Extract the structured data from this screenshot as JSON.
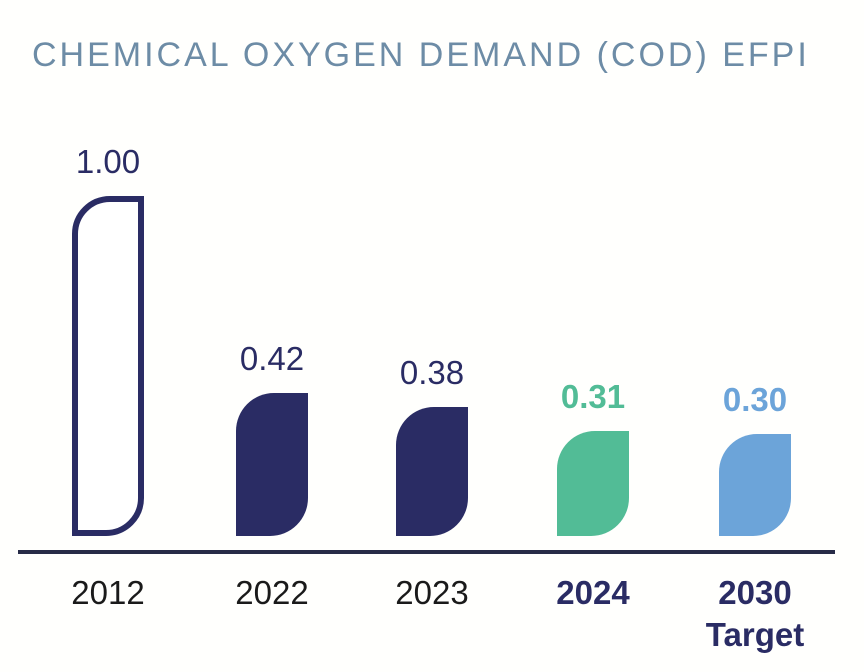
{
  "header": {
    "title": "CHEMICAL OXYGEN DEMAND (COD) EFPI",
    "title_color": "#6d8ca6"
  },
  "chart_data": {
    "type": "bar",
    "title": "CHEMICAL OXYGEN DEMAND (COD) EFPI",
    "categories": [
      "2012",
      "2022",
      "2023",
      "2024",
      "2030 Target"
    ],
    "values": [
      1.0,
      0.42,
      0.38,
      0.31,
      0.3
    ],
    "ylim": [
      0,
      1.0
    ],
    "grid": false,
    "legend": false,
    "baseline_color": "#272b47",
    "bars": [
      {
        "category": "2012",
        "tick": "2012",
        "value": 1.0,
        "label": "1.00",
        "style": "outline",
        "color": "#2a2c64",
        "label_color": "#2a2c64",
        "label_bold": false,
        "tick_color": "#1a1a1a",
        "tick_bold": false
      },
      {
        "category": "2022",
        "tick": "2022",
        "value": 0.42,
        "label": "0.42",
        "style": "filled",
        "color": "#2a2c64",
        "label_color": "#2a2c64",
        "label_bold": false,
        "tick_color": "#1a1a1a",
        "tick_bold": false
      },
      {
        "category": "2023",
        "tick": "2023",
        "value": 0.38,
        "label": "0.38",
        "style": "filled",
        "color": "#2a2c64",
        "label_color": "#2a2c64",
        "label_bold": false,
        "tick_color": "#1a1a1a",
        "tick_bold": false
      },
      {
        "category": "2024",
        "tick": "2024",
        "value": 0.31,
        "label": "0.31",
        "style": "filled",
        "color": "#52bc96",
        "label_color": "#52bc96",
        "label_bold": true,
        "tick_color": "#2a2c64",
        "tick_bold": true
      },
      {
        "category": "2030 Target",
        "tick": "2030\nTarget",
        "value": 0.3,
        "label": "0.30",
        "style": "filled",
        "color": "#6ca4d9",
        "label_color": "#6ca4d9",
        "label_bold": true,
        "tick_color": "#2a2c64",
        "tick_bold": true
      }
    ]
  }
}
